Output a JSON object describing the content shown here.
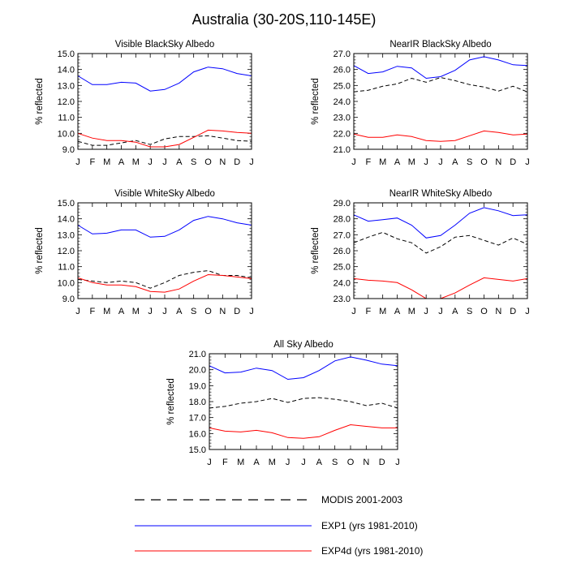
{
  "figure_title": "Australia (30-20S,110-145E)",
  "colors": {
    "modis": "#000000",
    "exp1": "#0000ff",
    "exp4d": "#ff0000",
    "axis": "#000000"
  },
  "legend": [
    {
      "key": "modis",
      "label": "MODIS 2001-2003",
      "style": "dashed"
    },
    {
      "key": "exp1",
      "label": "EXP1 (yrs 1981-2010)",
      "style": "solid"
    },
    {
      "key": "exp4d",
      "label": "EXP4d (yrs 1981-2010)",
      "style": "solid"
    }
  ],
  "chart_data": [
    {
      "id": "visible-blacksky",
      "type": "line",
      "title": "Visible BlackSky Albedo",
      "ylabel": "% reflected",
      "xlabel": "",
      "categories": [
        "J",
        "F",
        "M",
        "A",
        "M",
        "J",
        "J",
        "A",
        "S",
        "O",
        "N",
        "D",
        "J"
      ],
      "ylim": [
        9.0,
        15.0
      ],
      "yticks": [
        "9.0",
        "10.0",
        "11.0",
        "12.0",
        "13.0",
        "14.0",
        "15.0"
      ],
      "series": [
        {
          "key": "modis",
          "name": "MODIS 2001-2003",
          "values": [
            9.5,
            9.25,
            9.25,
            9.4,
            9.55,
            9.3,
            9.65,
            9.8,
            9.8,
            9.85,
            9.7,
            9.55,
            9.5
          ]
        },
        {
          "key": "exp1",
          "name": "EXP1 (yrs 1981-2010)",
          "values": [
            13.6,
            13.05,
            13.05,
            13.2,
            13.15,
            12.65,
            12.75,
            13.15,
            13.85,
            14.15,
            14.05,
            13.75,
            13.6
          ]
        },
        {
          "key": "exp4d",
          "name": "EXP4d (yrs 1981-2010)",
          "values": [
            10.0,
            9.7,
            9.55,
            9.55,
            9.45,
            9.15,
            9.15,
            9.3,
            9.75,
            10.2,
            10.15,
            10.05,
            10.0
          ]
        }
      ]
    },
    {
      "id": "nearir-blacksky",
      "type": "line",
      "title": "NearIR BlackSky Albedo",
      "ylabel": "% reflected",
      "xlabel": "",
      "categories": [
        "J",
        "F",
        "M",
        "A",
        "M",
        "J",
        "J",
        "A",
        "S",
        "O",
        "N",
        "D",
        "J"
      ],
      "ylim": [
        21.0,
        27.0
      ],
      "yticks": [
        "21.0",
        "22.0",
        "23.0",
        "24.0",
        "25.0",
        "26.0",
        "27.0"
      ],
      "series": [
        {
          "key": "modis",
          "name": "MODIS 2001-2003",
          "values": [
            24.6,
            24.7,
            24.95,
            25.1,
            25.45,
            25.2,
            25.5,
            25.3,
            25.05,
            24.9,
            24.65,
            24.95,
            24.6
          ]
        },
        {
          "key": "exp1",
          "name": "EXP1 (yrs 1981-2010)",
          "values": [
            26.25,
            25.75,
            25.85,
            26.2,
            26.1,
            25.45,
            25.55,
            25.95,
            26.6,
            26.8,
            26.6,
            26.3,
            26.25
          ]
        },
        {
          "key": "exp4d",
          "name": "EXP4d (yrs 1981-2010)",
          "values": [
            21.95,
            21.75,
            21.75,
            21.9,
            21.8,
            21.55,
            21.5,
            21.55,
            21.85,
            22.15,
            22.05,
            21.9,
            21.95
          ]
        }
      ]
    },
    {
      "id": "visible-whitesky",
      "type": "line",
      "title": "Visible WhiteSky Albedo",
      "ylabel": "% reflected",
      "xlabel": "",
      "categories": [
        "J",
        "F",
        "M",
        "A",
        "M",
        "J",
        "J",
        "A",
        "S",
        "O",
        "N",
        "D",
        "J"
      ],
      "ylim": [
        9.0,
        15.0
      ],
      "yticks": [
        "9.0",
        "10.0",
        "11.0",
        "12.0",
        "13.0",
        "14.0",
        "15.0"
      ],
      "series": [
        {
          "key": "modis",
          "name": "MODIS 2001-2003",
          "values": [
            10.2,
            10.1,
            10.0,
            10.1,
            10.0,
            9.65,
            10.0,
            10.45,
            10.65,
            10.75,
            10.45,
            10.45,
            10.3
          ]
        },
        {
          "key": "exp1",
          "name": "EXP1 (yrs 1981-2010)",
          "values": [
            13.6,
            13.05,
            13.1,
            13.3,
            13.3,
            12.85,
            12.9,
            13.3,
            13.9,
            14.15,
            14.0,
            13.75,
            13.6
          ]
        },
        {
          "key": "exp4d",
          "name": "EXP4d (yrs 1981-2010)",
          "values": [
            10.3,
            10.0,
            9.85,
            9.85,
            9.75,
            9.45,
            9.4,
            9.6,
            10.1,
            10.5,
            10.45,
            10.35,
            10.25
          ]
        }
      ]
    },
    {
      "id": "nearir-whitesky",
      "type": "line",
      "title": "NearIR WhiteSky Albedo",
      "ylabel": "% reflected",
      "xlabel": "",
      "categories": [
        "J",
        "F",
        "M",
        "A",
        "M",
        "J",
        "J",
        "A",
        "S",
        "O",
        "N",
        "D",
        "J"
      ],
      "ylim": [
        23.0,
        29.0
      ],
      "yticks": [
        "23.0",
        "24.0",
        "25.0",
        "26.0",
        "27.0",
        "28.0",
        "29.0"
      ],
      "series": [
        {
          "key": "modis",
          "name": "MODIS 2001-2003",
          "values": [
            26.5,
            26.85,
            27.15,
            26.75,
            26.5,
            25.85,
            26.25,
            26.85,
            26.95,
            26.65,
            26.35,
            26.8,
            26.4
          ]
        },
        {
          "key": "exp1",
          "name": "EXP1 (yrs 1981-2010)",
          "values": [
            28.25,
            27.85,
            27.95,
            28.05,
            27.6,
            26.8,
            26.95,
            27.6,
            28.35,
            28.7,
            28.5,
            28.2,
            28.25
          ]
        },
        {
          "key": "exp4d",
          "name": "EXP4d (yrs 1981-2010)",
          "values": [
            24.25,
            24.15,
            24.1,
            24.0,
            23.55,
            23.0,
            23.0,
            23.35,
            23.85,
            24.3,
            24.2,
            24.1,
            24.25
          ]
        }
      ]
    },
    {
      "id": "all-sky",
      "type": "line",
      "title": "All Sky Albedo",
      "ylabel": "% reflected",
      "xlabel": "",
      "categories": [
        "J",
        "F",
        "M",
        "A",
        "M",
        "J",
        "J",
        "A",
        "S",
        "O",
        "N",
        "D",
        "J"
      ],
      "ylim": [
        15.0,
        21.0
      ],
      "yticks": [
        "15.0",
        "16.0",
        "17.0",
        "18.0",
        "19.0",
        "20.0",
        "21.0"
      ],
      "series": [
        {
          "key": "modis",
          "name": "MODIS 2001-2003",
          "values": [
            17.6,
            17.7,
            17.9,
            18.0,
            18.2,
            17.95,
            18.2,
            18.25,
            18.15,
            18.0,
            17.75,
            17.9,
            17.6
          ]
        },
        {
          "key": "exp1",
          "name": "EXP1 (yrs 1981-2010)",
          "values": [
            20.25,
            19.8,
            19.85,
            20.1,
            19.95,
            19.4,
            19.5,
            19.95,
            20.55,
            20.8,
            20.6,
            20.35,
            20.25
          ]
        },
        {
          "key": "exp4d",
          "name": "EXP4d (yrs 1981-2010)",
          "values": [
            16.35,
            16.15,
            16.1,
            16.2,
            16.05,
            15.75,
            15.7,
            15.8,
            16.2,
            16.55,
            16.45,
            16.35,
            16.35
          ]
        }
      ]
    }
  ]
}
